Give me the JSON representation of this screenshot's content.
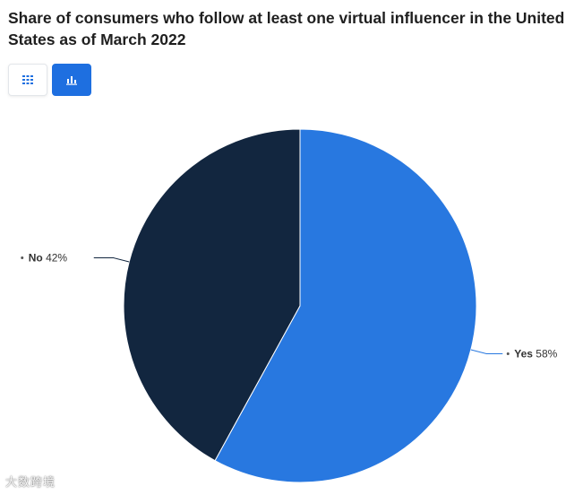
{
  "header": {
    "title": "Share of consumers who follow at least one virtual influencer in the United States as of March 2022"
  },
  "toolbar": {
    "table_view_icon": "grid-icon",
    "chart_view_icon": "bar-chart-icon",
    "active_color": "#1e6fe0"
  },
  "chart_data": {
    "type": "pie",
    "title": "Share of consumers who follow at least one virtual influencer in the United States as of March 2022",
    "unit": "%",
    "slices": [
      {
        "label": "Yes",
        "value": 58,
        "display": "58%",
        "color": "#2878e0"
      },
      {
        "label": "No",
        "value": 42,
        "display": "42%",
        "color": "#12263f"
      }
    ],
    "start_angle_deg": 0,
    "direction": "clockwise"
  },
  "watermark": {
    "text": "大数跨境"
  }
}
